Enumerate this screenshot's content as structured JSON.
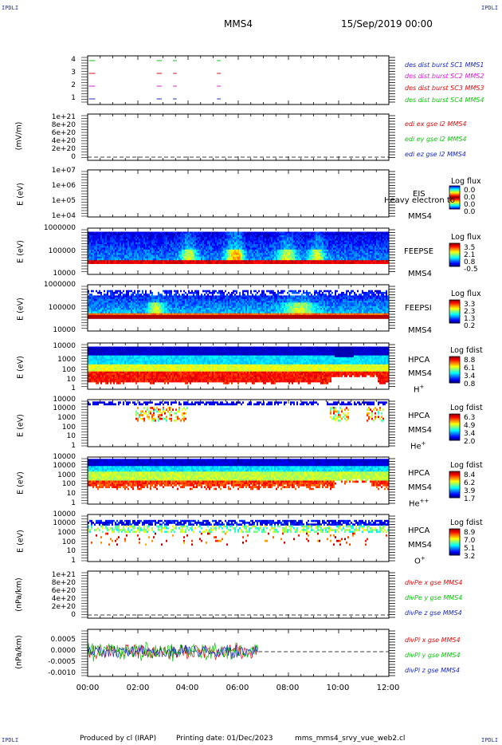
{
  "corner_labels": {
    "tl": "IPDLI",
    "tr": "IPDLI",
    "bl": "IPDLI",
    "br": "IPDLI"
  },
  "header": {
    "spacecraft": "MMS4",
    "datetime": "15/Sep/2019 00:00"
  },
  "footer": {
    "produced": "Produced by cl (IRAP)",
    "printing": "Printing date: 01/Dec/2023",
    "file": "mms_mms4_srvy_vue_web2.cl"
  },
  "colors": {
    "blue": "#1a2ab8",
    "magenta": "#d020d0",
    "red": "#d01010",
    "green": "#10c010",
    "axis": "#000000"
  },
  "chart_data": {
    "type": "multi-panel time series",
    "x_axis": {
      "ticks": [
        "00:00",
        "02:00",
        "04:00",
        "06:00",
        "08:00",
        "10:00",
        "12:00"
      ],
      "range_hours": [
        0,
        12
      ]
    },
    "panels": [
      {
        "id": "burst",
        "type": "line",
        "ylabel": "",
        "ytick_labels": [
          "1",
          "2",
          "3",
          "4"
        ],
        "legend": [
          {
            "text": "des dist burst SC1 MMS1",
            "color": "#1a2ab8"
          },
          {
            "text": "des dist burst SC2 MMS2",
            "color": "#d020d0"
          },
          {
            "text": "des dist burst SC3 MMS3",
            "color": "#d01010"
          },
          {
            "text": "des dist burst SC4 MMS4",
            "color": "#10c010"
          }
        ],
        "intervals_hours": [
          [
            0.05,
            0.3
          ],
          [
            2.75,
            2.95
          ],
          [
            3.4,
            3.55
          ],
          [
            5.15,
            5.3
          ]
        ]
      },
      {
        "id": "edi",
        "type": "line",
        "ylabel": "(mV/m)",
        "ytick_labels": [
          "1e+21",
          "8e+20",
          "6e+20",
          "4e+20",
          "2e+20",
          "0"
        ],
        "legend": [
          {
            "text": "edi ex gse l2 MMS4",
            "color": "#d01010"
          },
          {
            "text": "edi ey gse l2 MMS4",
            "color": "#10c010"
          },
          {
            "text": "edi ez gse l2 MMS4",
            "color": "#1a2ab8"
          }
        ]
      },
      {
        "id": "eis",
        "type": "heatmap",
        "ylabel": "E (eV)",
        "ytick_labels": [
          "1e+07",
          "1e+06",
          "1e+05",
          "1e+04"
        ],
        "instrument": "EIS",
        "spacecraft": "MMS4",
        "overlay": "Heavy electron to",
        "cbar_title": "Log flux",
        "cbar_values": [
          "0.0",
          "0.0",
          "0.0",
          "0.0"
        ]
      },
      {
        "id": "feepse",
        "type": "heatmap",
        "ylabel": "E (eV)",
        "ytick_labels": [
          "1000000",
          "100000",
          "10000"
        ],
        "instrument": "FEEPSE",
        "spacecraft": "MMS4",
        "cbar_title": "Log flux",
        "cbar_values": [
          "3.5",
          "2.1",
          "0.8",
          "-0.5"
        ]
      },
      {
        "id": "feepsi",
        "type": "heatmap",
        "ylabel": "E (eV)",
        "ytick_labels": [
          "1000000",
          "100000",
          "10000"
        ],
        "instrument": "FEEPSI",
        "spacecraft": "MMS4",
        "cbar_title": "Log flux",
        "cbar_values": [
          "3.3",
          "2.3",
          "1.3",
          "0.2"
        ]
      },
      {
        "id": "hpca_h",
        "type": "heatmap",
        "ylabel": "E (eV)",
        "ytick_labels": [
          "10000",
          "1000",
          "100",
          "10",
          "1"
        ],
        "instrument": "HPCA",
        "spacecraft": "MMS4",
        "species": "H",
        "charge": "+",
        "cbar_title": "Log fdist",
        "cbar_values": [
          "8.8",
          "6.1",
          "3.4",
          "0.8"
        ]
      },
      {
        "id": "hpca_he",
        "type": "heatmap",
        "ylabel": "E (eV)",
        "ytick_labels": [
          "10000",
          "1000",
          "100",
          "10",
          "1"
        ],
        "instrument": "HPCA",
        "spacecraft": "MMS4",
        "species": "He",
        "charge": "+",
        "cbar_title": "Log fdist",
        "cbar_values": [
          "6.3",
          "4.9",
          "3.4",
          "2.0"
        ]
      },
      {
        "id": "hpca_he2",
        "type": "heatmap",
        "ylabel": "E (eV)",
        "ytick_labels": [
          "10000",
          "1000",
          "100",
          "10",
          "1"
        ],
        "instrument": "HPCA",
        "spacecraft": "MMS4",
        "species": "He",
        "charge": "++",
        "cbar_title": "Log fdist",
        "cbar_values": [
          "8.4",
          "6.2",
          "3.9",
          "1.7"
        ]
      },
      {
        "id": "hpca_o",
        "type": "heatmap",
        "ylabel": "E (eV)",
        "ytick_labels": [
          "10000",
          "1000",
          "100",
          "10",
          "1"
        ],
        "instrument": "HPCA",
        "spacecraft": "MMS4",
        "species": "O",
        "charge": "+",
        "cbar_title": "Log fdist",
        "cbar_values": [
          "8.9",
          "7.0",
          "5.1",
          "3.2"
        ]
      },
      {
        "id": "divpe",
        "type": "line",
        "ylabel": "(nPa/km)",
        "ytick_labels": [
          "1e+21",
          "8e+20",
          "6e+20",
          "4e+20",
          "2e+20",
          "0"
        ],
        "legend": [
          {
            "text": "divPe x gse MMS4",
            "color": "#d01010"
          },
          {
            "text": "divPe y gse MMS4",
            "color": "#10c010"
          },
          {
            "text": "divPe z gse MMS4",
            "color": "#1a2ab8"
          }
        ]
      },
      {
        "id": "divpi",
        "type": "line",
        "ylabel": "(nPa/km)",
        "ytick_labels": [
          "0.0005",
          "0.0000",
          "-0.0005",
          "-0.0010"
        ],
        "yrange": [
          -0.0012,
          0.0008
        ],
        "data_end_hours": 6.8,
        "legend": [
          {
            "text": "divPi x gse MMS4",
            "color": "#d01010"
          },
          {
            "text": "divPi y gse MMS4",
            "color": "#10c010"
          },
          {
            "text": "divPi z gse MMS4",
            "color": "#1a2ab8"
          }
        ]
      }
    ]
  }
}
